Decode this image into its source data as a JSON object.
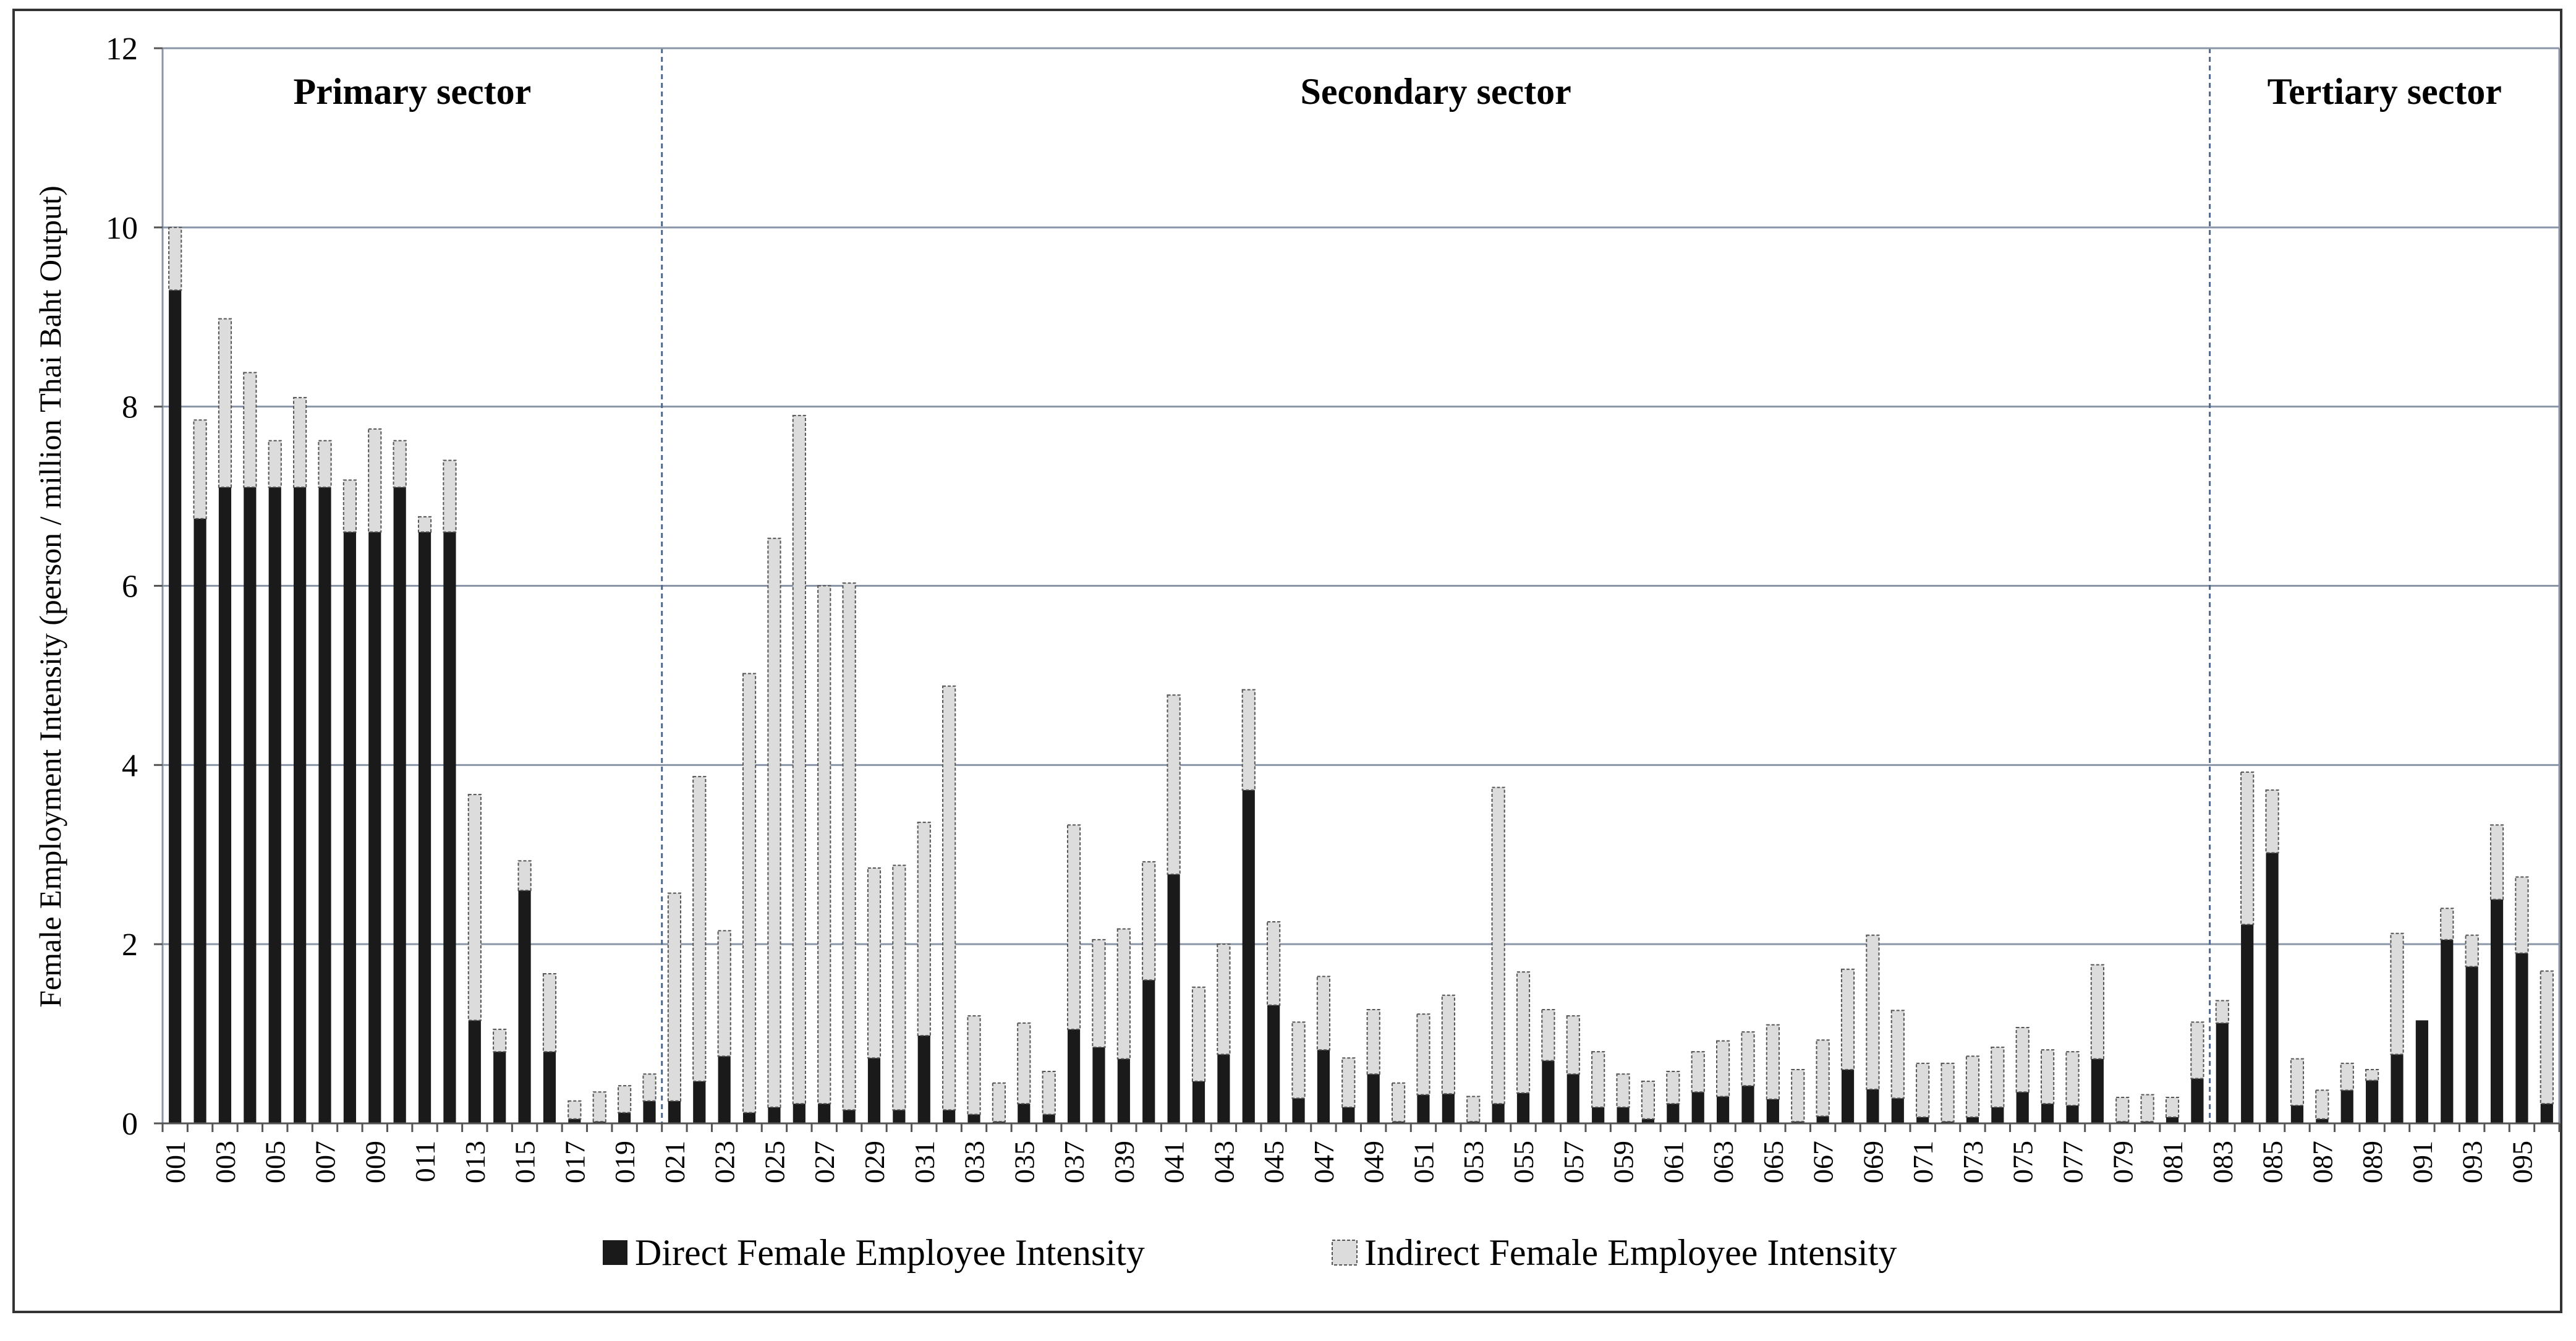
{
  "chart_data": {
    "type": "bar",
    "stacked": true,
    "ylabel": "Female Employment Intensity (person / million Thai Baht Output)",
    "xlabel": "",
    "ylim": [
      0,
      12
    ],
    "yticks": [
      0,
      2,
      4,
      6,
      8,
      10,
      12
    ],
    "grid": true,
    "legend_position": "bottom",
    "sectors": [
      {
        "label": "Primary sector",
        "start": "001",
        "end": "020"
      },
      {
        "label": "Secondary sector",
        "start": "021",
        "end": "082"
      },
      {
        "label": "Tertiary sector",
        "start": "083",
        "end": "096"
      }
    ],
    "categories": [
      "001",
      "002",
      "003",
      "004",
      "005",
      "006",
      "007",
      "008",
      "009",
      "010",
      "011",
      "012",
      "013",
      "014",
      "015",
      "016",
      "017",
      "018",
      "019",
      "020",
      "021",
      "022",
      "023",
      "024",
      "025",
      "026",
      "027",
      "028",
      "029",
      "030",
      "031",
      "032",
      "033",
      "034",
      "035",
      "036",
      "037",
      "038",
      "039",
      "040",
      "041",
      "042",
      "043",
      "044",
      "045",
      "046",
      "047",
      "048",
      "049",
      "050",
      "051",
      "052",
      "053",
      "054",
      "055",
      "056",
      "057",
      "058",
      "059",
      "060",
      "061",
      "062",
      "063",
      "064",
      "065",
      "066",
      "067",
      "068",
      "069",
      "070",
      "071",
      "072",
      "073",
      "074",
      "075",
      "076",
      "077",
      "078",
      "079",
      "080",
      "081",
      "082",
      "083",
      "084",
      "085",
      "086",
      "087",
      "088",
      "089",
      "090",
      "091",
      "092",
      "093",
      "094",
      "095",
      "096"
    ],
    "series": [
      {
        "name": "Direct Female Employee Intensity",
        "color": "#1a1a1a",
        "values": [
          9.3,
          6.75,
          7.1,
          7.1,
          7.1,
          7.1,
          7.1,
          6.6,
          6.6,
          7.1,
          6.6,
          6.6,
          1.15,
          0.8,
          2.6,
          0.8,
          0.05,
          0.02,
          0.12,
          0.25,
          0.25,
          0.47,
          0.75,
          0.12,
          0.18,
          0.22,
          0.22,
          0.15,
          0.73,
          0.15,
          0.98,
          0.15,
          0.1,
          0.02,
          0.22,
          0.1,
          1.05,
          0.85,
          0.72,
          1.6,
          2.78,
          0.47,
          0.77,
          3.72,
          1.32,
          0.28,
          0.82,
          0.18,
          0.55,
          0.02,
          0.32,
          0.33,
          0.02,
          0.22,
          0.34,
          0.7,
          0.55,
          0.18,
          0.18,
          0.05,
          0.22,
          0.35,
          0.3,
          0.42,
          0.27,
          0.02,
          0.08,
          0.6,
          0.38,
          0.28,
          0.07,
          0.02,
          0.07,
          0.18,
          0.35,
          0.22,
          0.2,
          0.72,
          0.02,
          0.02,
          0.07,
          0.5,
          1.12,
          2.22,
          3.02,
          0.2,
          0.05,
          0.37,
          0.48,
          0.77,
          1.15,
          2.05,
          1.75,
          2.5,
          1.9,
          0.22
        ]
      },
      {
        "name": "Indirect Female Employee Intensity",
        "color": "#dcdcdc",
        "values": [
          0.7,
          1.1,
          1.88,
          1.28,
          0.52,
          1.0,
          0.52,
          0.58,
          1.15,
          0.52,
          0.17,
          0.8,
          2.52,
          0.25,
          0.33,
          0.87,
          0.2,
          0.33,
          0.3,
          0.3,
          2.32,
          3.4,
          1.4,
          4.9,
          6.35,
          7.68,
          5.78,
          5.88,
          2.12,
          2.73,
          2.38,
          4.73,
          1.1,
          0.43,
          0.9,
          0.48,
          2.28,
          1.2,
          1.45,
          1.32,
          2.0,
          1.05,
          1.23,
          1.12,
          0.93,
          0.85,
          0.82,
          0.55,
          0.72,
          0.43,
          0.9,
          1.1,
          0.28,
          3.53,
          1.35,
          0.57,
          0.65,
          0.62,
          0.37,
          0.42,
          0.36,
          0.45,
          0.62,
          0.6,
          0.83,
          0.58,
          0.85,
          1.12,
          1.72,
          0.98,
          0.6,
          0.65,
          0.68,
          0.67,
          0.72,
          0.6,
          0.6,
          1.05,
          0.27,
          0.3,
          0.22,
          0.63,
          0.25,
          1.7,
          0.7,
          0.52,
          0.32,
          0.3,
          0.12,
          1.35,
          0.0,
          0.35,
          0.35,
          0.83,
          0.85,
          1.48
        ]
      }
    ]
  }
}
